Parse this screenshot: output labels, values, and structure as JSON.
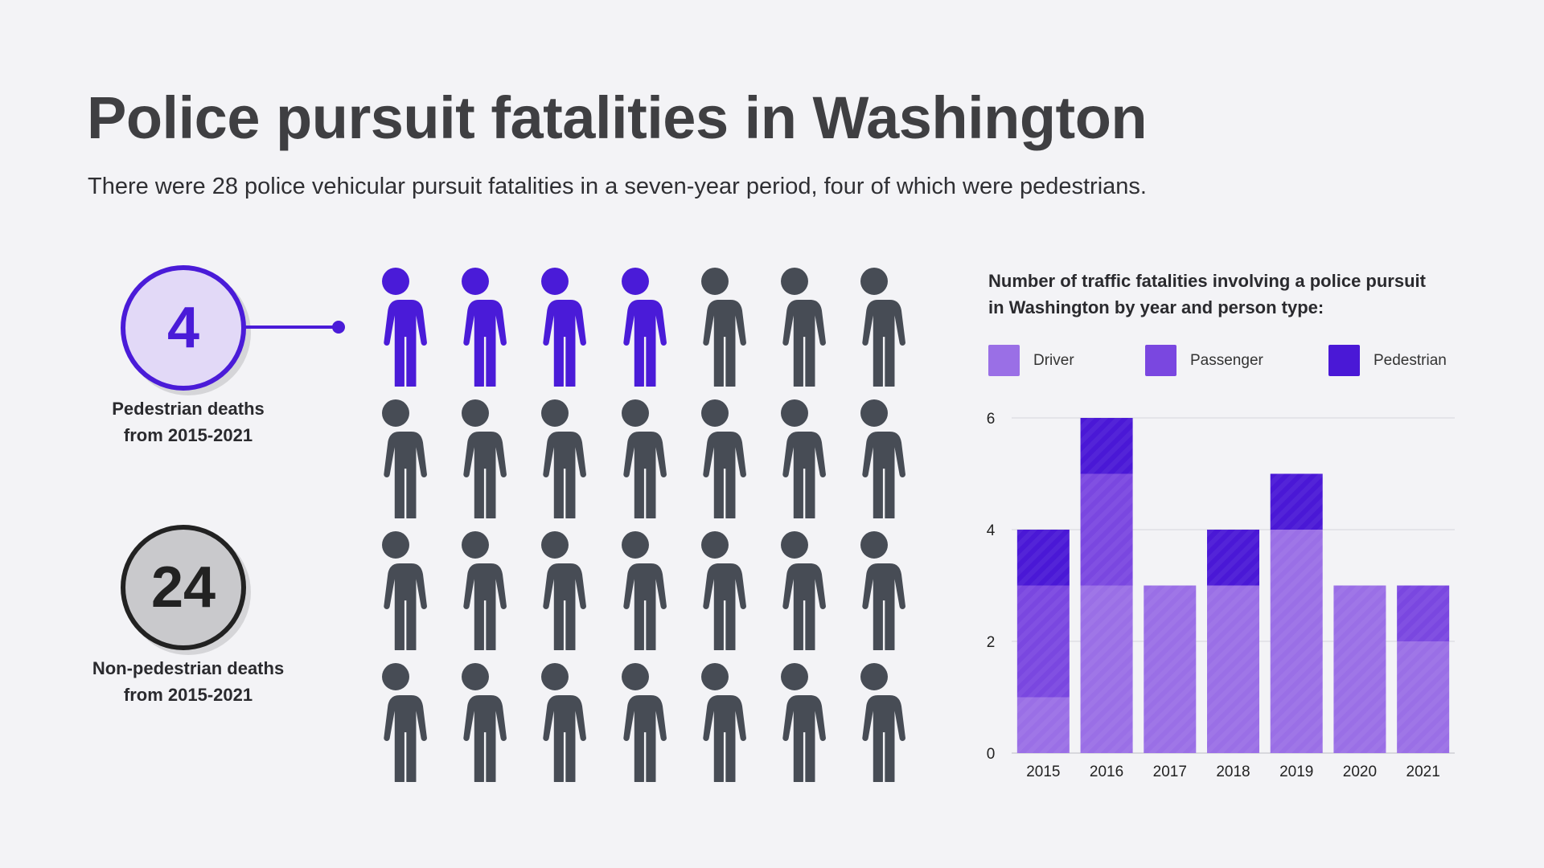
{
  "header": {
    "title": "Police pursuit fatalities in Washington",
    "subtitle": "There were 28 police vehicular pursuit fatalities in a seven-year period, four of which were pedestrians."
  },
  "stats": [
    {
      "value": "4",
      "label_line1": "Pedestrian deaths",
      "label_line2": "from 2015-2021",
      "color": "#4a1bd8"
    },
    {
      "value": "24",
      "label_line1": "Non-pedestrian deaths",
      "label_line2": "from 2015-2021",
      "color": "#474c55"
    }
  ],
  "pictogram": {
    "icon": "person-icon",
    "rows": 4,
    "columns": 7,
    "highlighted": 4,
    "total": 28,
    "highlight_color": "#4a1bd8",
    "base_color": "#474c55"
  },
  "chart_data": {
    "type": "bar",
    "stacked": true,
    "title_line1": "Number of traffic fatalities involving a police pursuit",
    "title_line2": "in Washington by year and person type:",
    "categories": [
      "2015",
      "2016",
      "2017",
      "2018",
      "2019",
      "2020",
      "2021"
    ],
    "series": [
      {
        "name": "Driver",
        "values": [
          1,
          3,
          3,
          3,
          4,
          3,
          2
        ],
        "color": "#9a6fe6"
      },
      {
        "name": "Passenger",
        "values": [
          2,
          2,
          0,
          0,
          0,
          0,
          1
        ],
        "color": "#7a47e0"
      },
      {
        "name": "Pedestrian",
        "values": [
          1,
          1,
          0,
          1,
          1,
          0,
          0
        ],
        "color": "#4a18d6"
      }
    ],
    "ylim": [
      0,
      6
    ],
    "yticks": [
      "0",
      "2",
      "4",
      "6"
    ],
    "grid": true,
    "legend": "top"
  }
}
